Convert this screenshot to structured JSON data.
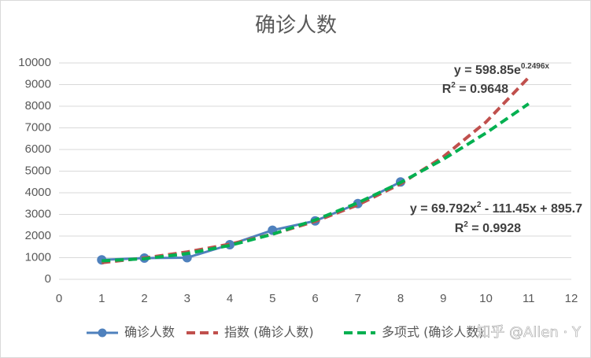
{
  "chart_data": {
    "type": "line",
    "title": "确诊人数",
    "xlim": [
      0,
      12
    ],
    "xticks": [
      0,
      1,
      2,
      3,
      4,
      5,
      6,
      7,
      8,
      9,
      10,
      11,
      12
    ],
    "ylim": [
      0,
      10000
    ],
    "yticks": [
      0,
      1000,
      2000,
      3000,
      4000,
      5000,
      6000,
      7000,
      8000,
      9000,
      10000
    ],
    "grid": true,
    "series": [
      {
        "name": "确诊人数",
        "color": "#4f81bd",
        "style": "solid",
        "markers": true,
        "x": [
          1,
          2,
          3,
          4,
          5,
          6,
          7,
          8
        ],
        "values": [
          900,
          980,
          1000,
          1600,
          2270,
          2700,
          3500,
          4500
        ]
      },
      {
        "name": "指数 (确诊人数)",
        "color": "#c0504d",
        "style": "dashed",
        "markers": false,
        "x": [
          1,
          2,
          3,
          4,
          5,
          6,
          7,
          8,
          9,
          10,
          11
        ],
        "values": [
          769,
          987,
          1266,
          1625,
          2086,
          2678,
          3437,
          4411,
          5662,
          7267,
          9327
        ]
      },
      {
        "name": "多项式 (确诊人数)",
        "color": "#00b050",
        "style": "dashed",
        "markers": false,
        "x": [
          1,
          2,
          3,
          4,
          5,
          6,
          7,
          8,
          9,
          10,
          11
        ],
        "values": [
          854,
          952,
          1190,
          1567,
          2083,
          2740,
          3535,
          4471,
          5546,
          6760,
          8115
        ]
      }
    ],
    "annotations": [
      {
        "parts": [
          "y = 598.85e",
          "0.2496x"
        ]
      },
      {
        "parts": [
          "R",
          "2",
          " = 0.9648"
        ]
      },
      {
        "parts": [
          "y = 69.792x",
          "2",
          " - 111.45x + 895.7"
        ]
      },
      {
        "parts": [
          "R",
          "2",
          " = 0.9928"
        ]
      }
    ],
    "watermark": "知乎 @Allen · Y"
  }
}
